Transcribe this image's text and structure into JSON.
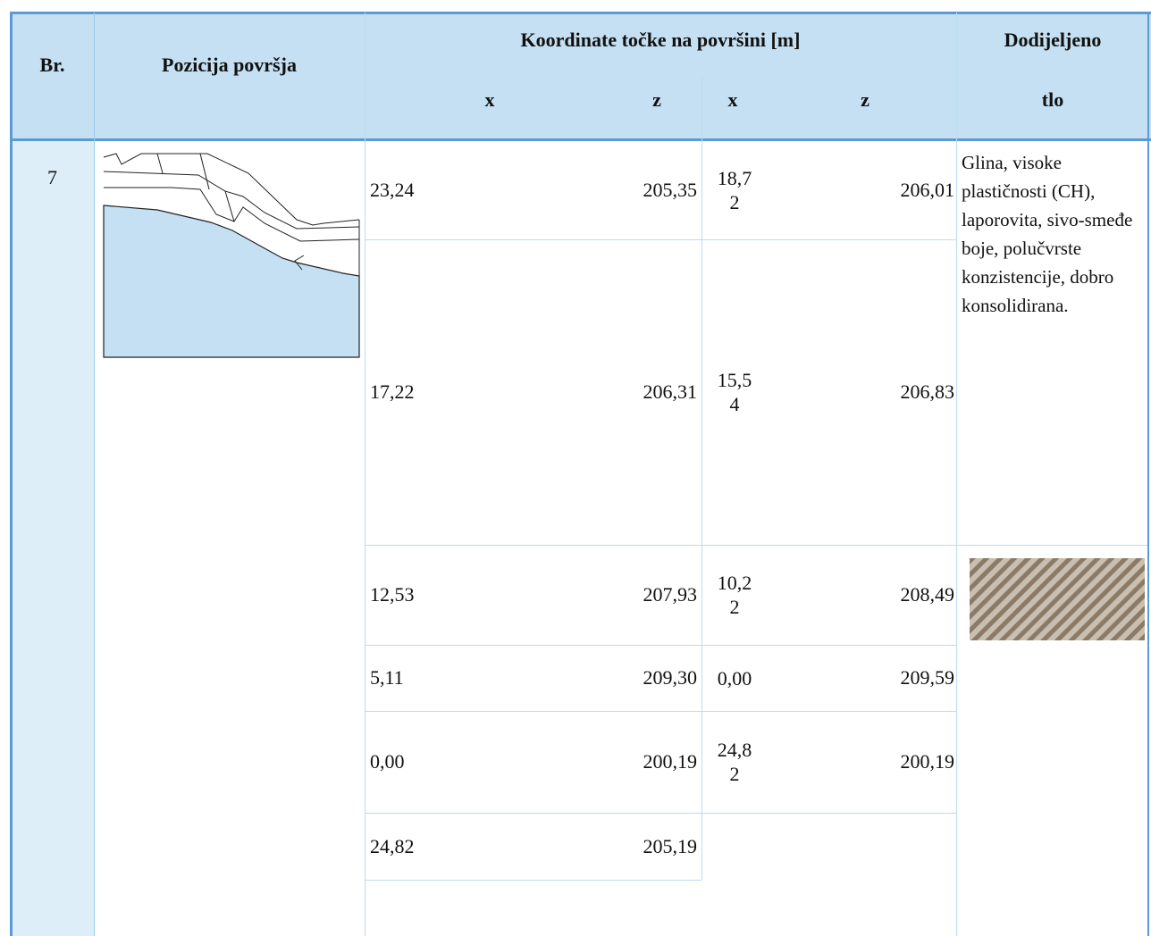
{
  "header": {
    "number": "Br.",
    "position": "Pozicija površja",
    "coordinates": "Koordinate točke na površini [m]",
    "assigned": "Dodijeljeno",
    "assigned_2": "tlo",
    "axes": [
      "x",
      "z",
      "x",
      "z"
    ]
  },
  "table": {
    "number": "7",
    "soil": "Glina, visoke plastičnosti (CH), laporovita, sivo-smeđe boje, polučvrste konzistencije, dobro konsolidirana.",
    "rows": [
      [
        "23,24",
        "205,35",
        "18,72",
        "206,01"
      ],
      [
        "17,22",
        "206,31",
        "15,54",
        "206,83"
      ],
      [
        "12,53",
        "207,93",
        "10,22",
        "208,49"
      ],
      [
        "5,11",
        "209,30",
        "0,00",
        "209,59"
      ],
      [
        "0,00",
        "200,19",
        "24,82",
        "200,19"
      ],
      [
        "24,82",
        "205,19"
      ]
    ]
  }
}
